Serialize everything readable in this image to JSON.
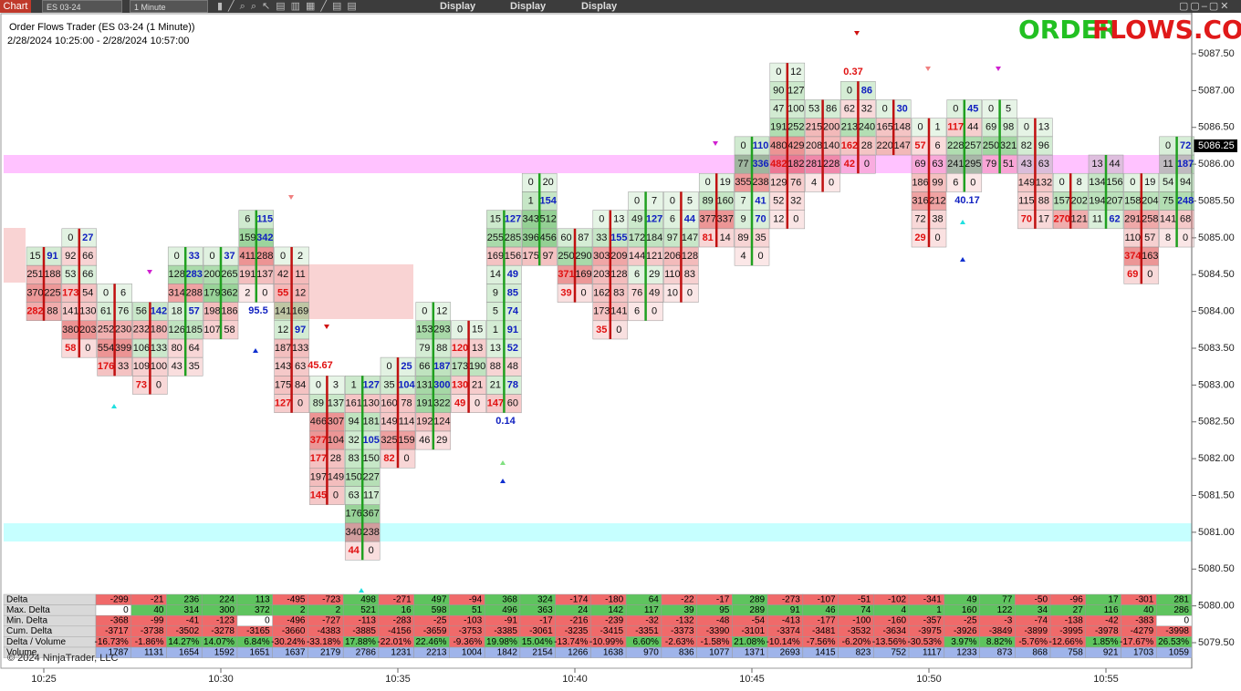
{
  "toolbar": {
    "chart": "Chart",
    "instrument": "ES 03-24",
    "interval": "1 Minute",
    "menus": [
      "Display",
      "Display",
      "Display"
    ]
  },
  "header": {
    "title": "Order Flows Trader (ES 03-24 (1 Minute))",
    "range": "2/28/2024 10:25:00 - 2/28/2024 10:57:00",
    "logo_a": "ORDER",
    "logo_b": "FLOWS.COM"
  },
  "chart": {
    "price_ticks": [
      {
        "value": 5087.5,
        "label": "5087.50"
      },
      {
        "value": 5087,
        "label": "5087.00"
      },
      {
        "value": 5086.5,
        "label": "5086.50"
      },
      {
        "value": 5086,
        "label": "5086.00"
      },
      {
        "value": 5085.5,
        "label": "5085.50"
      },
      {
        "value": 5085,
        "label": "5085.00"
      },
      {
        "value": 5084.5,
        "label": "5084.50"
      },
      {
        "value": 5084,
        "label": "5084.00"
      },
      {
        "value": 5083.5,
        "label": "5083.50"
      },
      {
        "value": 5083,
        "label": "5083.00"
      },
      {
        "value": 5082.5,
        "label": "5082.50"
      },
      {
        "value": 5082,
        "label": "5082.00"
      },
      {
        "value": 5081.5,
        "label": "5081.50"
      },
      {
        "value": 5081,
        "label": "5081.00"
      },
      {
        "value": 5080.5,
        "label": "5080.50"
      },
      {
        "value": 5080,
        "label": "5080.00"
      },
      {
        "value": 5079.5,
        "label": "5079.50"
      }
    ],
    "last_price": 5086.25,
    "time_ticks": [
      "10:25",
      "10:30",
      "10:35",
      "10:40",
      "10:45",
      "10:50",
      "10:55"
    ],
    "bars": [
      {
        "top": 5084.75,
        "rows": [
          [
            15,
            91
          ],
          [
            251,
            188
          ],
          [
            370,
            225
          ],
          [
            282,
            88
          ]
        ]
      },
      {
        "top": 5085,
        "rows": [
          [
            0,
            27
          ],
          [
            92,
            66
          ],
          [
            53,
            66
          ],
          [
            173,
            54
          ],
          [
            141,
            130
          ],
          [
            380,
            203
          ],
          [
            58,
            0
          ]
        ]
      },
      {
        "top": 5084.25,
        "rows": [
          [
            0,
            6
          ],
          [
            61,
            76
          ],
          [
            252,
            230
          ],
          [
            554,
            399
          ],
          [
            176,
            33
          ]
        ]
      },
      {
        "top": 5084,
        "rows": [
          [
            56,
            142
          ],
          [
            232,
            180
          ],
          [
            106,
            133
          ],
          [
            109,
            100
          ],
          [
            73,
            0
          ]
        ]
      },
      {
        "top": 5084.75,
        "rows": [
          [
            0,
            33
          ],
          [
            128,
            283
          ],
          [
            314,
            288
          ],
          [
            18,
            57
          ],
          [
            126,
            185
          ],
          [
            80,
            64
          ],
          [
            43,
            35
          ]
        ]
      },
      {
        "top": 5084.75,
        "rows": [
          [
            0,
            37
          ],
          [
            200,
            265
          ],
          [
            179,
            362
          ],
          [
            198,
            186
          ],
          [
            107,
            58
          ]
        ]
      },
      {
        "top": 5085.25,
        "rows": [
          [
            6,
            115
          ],
          [
            159,
            342
          ],
          [
            411,
            288
          ],
          [
            191,
            137
          ],
          [
            2,
            0
          ]
        ]
      },
      {
        "top": 5084.75,
        "rows": [
          [
            0,
            2
          ],
          [
            42,
            11
          ],
          [
            55,
            12
          ],
          [
            141,
            169
          ],
          [
            12,
            97
          ],
          [
            187,
            133
          ],
          [
            143,
            63
          ],
          [
            175,
            84
          ],
          [
            127,
            0
          ]
        ]
      },
      {
        "top": 5083,
        "rows": [
          [
            0,
            3
          ],
          [
            89,
            137
          ],
          [
            466,
            307
          ],
          [
            377,
            104
          ],
          [
            177,
            28
          ],
          [
            197,
            149
          ],
          [
            145,
            0
          ]
        ]
      },
      {
        "top": 5083,
        "rows": [
          [
            1,
            127
          ],
          [
            161,
            130
          ],
          [
            94,
            181
          ],
          [
            32,
            105
          ],
          [
            83,
            150
          ],
          [
            150,
            227
          ],
          [
            63,
            117
          ],
          [
            176,
            367
          ],
          [
            340,
            238
          ],
          [
            44,
            0
          ]
        ]
      },
      {
        "top": 5083.25,
        "rows": [
          [
            0,
            25
          ],
          [
            35,
            104
          ],
          [
            160,
            78
          ],
          [
            149,
            114
          ],
          [
            325,
            159
          ],
          [
            82,
            0
          ]
        ]
      },
      {
        "top": 5084,
        "rows": [
          [
            0,
            12
          ],
          [
            153,
            293
          ],
          [
            79,
            88
          ],
          [
            66,
            187
          ],
          [
            131,
            300
          ],
          [
            191,
            322
          ],
          [
            192,
            124
          ],
          [
            46,
            29
          ]
        ]
      },
      {
        "top": 5083.75,
        "rows": [
          [
            0,
            15
          ],
          [
            120,
            13
          ],
          [
            173,
            190
          ],
          [
            130,
            21
          ],
          [
            49,
            0
          ]
        ]
      },
      {
        "top": 5085.25,
        "rows": [
          [
            15,
            127
          ],
          [
            255,
            285
          ],
          [
            169,
            156
          ],
          [
            14,
            49
          ],
          [
            9,
            85
          ],
          [
            5,
            74
          ],
          [
            1,
            91
          ],
          [
            13,
            52
          ],
          [
            88,
            48
          ],
          [
            21,
            78
          ],
          [
            147,
            60
          ]
        ]
      },
      {
        "top": 5085.75,
        "rows": [
          [
            0,
            20
          ],
          [
            1,
            154
          ],
          [
            343,
            512
          ],
          [
            396,
            456
          ],
          [
            175,
            97
          ]
        ]
      },
      {
        "top": 5085,
        "rows": [
          [
            60,
            87
          ],
          [
            250,
            290
          ],
          [
            371,
            169
          ],
          [
            39,
            0
          ]
        ]
      },
      {
        "top": 5085.25,
        "rows": [
          [
            0,
            13
          ],
          [
            33,
            155
          ],
          [
            303,
            209
          ],
          [
            203,
            128
          ],
          [
            162,
            83
          ],
          [
            173,
            141
          ],
          [
            35,
            0
          ]
        ]
      },
      {
        "top": 5085.5,
        "rows": [
          [
            0,
            7
          ],
          [
            49,
            127
          ],
          [
            172,
            184
          ],
          [
            144,
            121
          ],
          [
            6,
            29
          ],
          [
            76,
            49
          ],
          [
            6,
            0
          ]
        ]
      },
      {
        "top": 5085.5,
        "rows": [
          [
            0,
            5
          ],
          [
            6,
            44
          ],
          [
            97,
            147
          ],
          [
            206,
            128
          ],
          [
            110,
            83
          ],
          [
            10,
            0
          ]
        ]
      },
      {
        "top": 5085.75,
        "rows": [
          [
            0,
            19
          ],
          [
            89,
            160
          ],
          [
            377,
            337
          ],
          [
            81,
            14
          ]
        ]
      },
      {
        "top": 5086.25,
        "rows": [
          [
            0,
            110
          ],
          [
            77,
            336
          ],
          [
            355,
            238
          ],
          [
            7,
            41
          ],
          [
            9,
            70
          ],
          [
            89,
            35
          ],
          [
            4,
            0
          ]
        ]
      },
      {
        "top": 5087.25,
        "rows": [
          [
            0,
            12
          ],
          [
            90,
            127
          ],
          [
            47,
            100
          ],
          [
            191,
            252
          ],
          [
            480,
            429
          ],
          [
            482,
            182
          ],
          [
            129,
            76
          ],
          [
            52,
            32
          ],
          [
            12,
            0
          ]
        ]
      },
      {
        "top": 5086.75,
        "rows": [
          [
            53,
            86
          ],
          [
            215,
            200
          ],
          [
            208,
            140
          ],
          [
            281,
            228
          ],
          [
            4,
            0
          ]
        ]
      },
      {
        "top": 5087,
        "rows": [
          [
            0,
            86
          ],
          [
            62,
            32
          ],
          [
            213,
            240
          ],
          [
            162,
            28
          ],
          [
            42,
            0
          ]
        ]
      },
      {
        "top": 5086.75,
        "rows": [
          [
            0,
            30
          ],
          [
            165,
            148
          ],
          [
            220,
            147
          ]
        ]
      },
      {
        "top": 5086.5,
        "rows": [
          [
            0,
            1
          ],
          [
            57,
            6
          ],
          [
            69,
            63
          ],
          [
            186,
            99
          ],
          [
            316,
            212
          ],
          [
            72,
            38
          ],
          [
            29,
            0
          ]
        ]
      },
      {
        "top": 5086.75,
        "rows": [
          [
            0,
            45
          ],
          [
            117,
            44
          ],
          [
            228,
            257
          ],
          [
            241,
            295
          ],
          [
            6,
            0
          ]
        ]
      },
      {
        "top": 5086.75,
        "rows": [
          [
            0,
            5
          ],
          [
            69,
            98
          ],
          [
            250,
            321
          ],
          [
            79,
            51
          ]
        ]
      },
      {
        "top": 5086.5,
        "rows": [
          [
            0,
            13
          ],
          [
            82,
            96
          ],
          [
            43,
            63
          ],
          [
            149,
            132
          ],
          [
            115,
            88
          ],
          [
            70,
            17
          ]
        ]
      },
      {
        "top": 5085.75,
        "rows": [
          [
            0,
            8
          ],
          [
            157,
            202
          ],
          [
            270,
            121
          ]
        ]
      },
      {
        "top": 5086,
        "rows": [
          [
            13,
            44
          ],
          [
            134,
            156
          ],
          [
            194,
            207
          ],
          [
            11,
            62
          ]
        ]
      },
      {
        "top": 5085.75,
        "rows": [
          [
            0,
            19
          ],
          [
            158,
            204
          ],
          [
            291,
            258
          ],
          [
            110,
            57
          ],
          [
            374,
            163
          ],
          [
            69,
            0
          ]
        ]
      },
      {
        "top": 5086.25,
        "rows": [
          [
            0,
            72
          ],
          [
            11,
            187
          ],
          [
            54,
            94
          ],
          [
            75,
            248
          ],
          [
            141,
            68
          ],
          [
            8,
            0
          ]
        ]
      }
    ],
    "annotations": [
      "95.5",
      "45.67",
      "0.14",
      "0.37",
      "40.17"
    ]
  },
  "table": {
    "rows": [
      {
        "label": "Delta",
        "cells": [
          -299,
          -21,
          236,
          224,
          113,
          -495,
          -723,
          498,
          -271,
          497,
          -94,
          368,
          324,
          -174,
          -180,
          64,
          -22,
          -17,
          289,
          -273,
          -107,
          -51,
          -102,
          -341,
          49,
          77,
          -50,
          -96,
          17,
          -301,
          281
        ]
      },
      {
        "label": "Max. Delta",
        "cells": [
          0,
          40,
          314,
          300,
          372,
          2,
          2,
          521,
          16,
          598,
          51,
          496,
          363,
          24,
          142,
          117,
          39,
          95,
          289,
          91,
          46,
          74,
          4,
          1,
          160,
          122,
          34,
          27,
          116,
          40,
          286
        ]
      },
      {
        "label": "Min. Delta",
        "cells": [
          -368,
          -99,
          -41,
          -123,
          0,
          -496,
          -727,
          -113,
          -283,
          -25,
          -103,
          -91,
          -17,
          -216,
          -239,
          -32,
          -132,
          -48,
          -54,
          -413,
          -177,
          -100,
          -160,
          -357,
          -25,
          -3,
          -74,
          -138,
          -42,
          -383,
          0
        ]
      },
      {
        "label": "Cum. Delta",
        "cells": [
          -3717,
          -3738,
          -3502,
          -3278,
          -3165,
          -3660,
          -4383,
          -3885,
          -4156,
          -3659,
          -3753,
          -3385,
          -3061,
          -3235,
          -3415,
          -3351,
          -3373,
          -3390,
          -3101,
          -3374,
          -3481,
          -3532,
          -3634,
          -3975,
          -3926,
          -3849,
          -3899,
          -3995,
          -3978,
          -4279,
          -3998
        ]
      },
      {
        "label": "Delta / Volume",
        "cells": [
          "-16.73%",
          "-1.86%",
          "14.27%",
          "14.07%",
          "6.84%",
          "-30.24%",
          "-33.18%",
          "17.88%",
          "-22.01%",
          "22.46%",
          "-9.36%",
          "19.98%",
          "15.04%",
          "-13.74%",
          "-10.99%",
          "6.60%",
          "-2.63%",
          "-1.58%",
          "21.08%",
          "-10.14%",
          "-7.56%",
          "-6.20%",
          "-13.56%",
          "-30.53%",
          "3.97%",
          "8.82%",
          "-5.76%",
          "-12.66%",
          "1.85%",
          "-17.67%",
          "26.53%"
        ]
      },
      {
        "label": "Volume",
        "cells": [
          1787,
          1131,
          1654,
          1592,
          1651,
          1637,
          2179,
          2786,
          1231,
          2213,
          1004,
          1842,
          2154,
          1266,
          1638,
          970,
          836,
          1077,
          1371,
          2693,
          1415,
          823,
          752,
          1117,
          1233,
          873,
          868,
          758,
          921,
          1703,
          1059
        ]
      }
    ]
  },
  "footer": "© 2024 NinjaTrader, LLC"
}
